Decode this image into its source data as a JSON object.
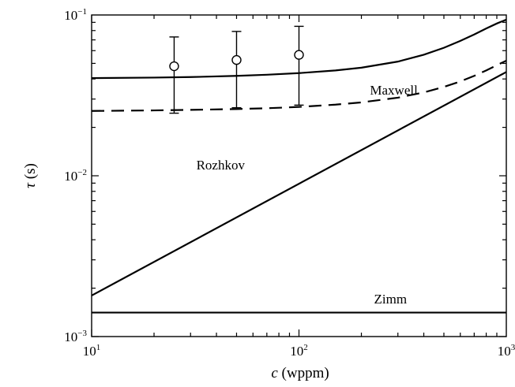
{
  "chart_data": {
    "type": "line",
    "title": "",
    "xlabel": {
      "var": "c",
      "unit": " (wppm)"
    },
    "ylabel": {
      "var": "τ",
      "unit": " (s)"
    },
    "x_scale": "log",
    "y_scale": "log",
    "xlim": [
      10,
      1000
    ],
    "ylim": [
      0.001,
      0.1
    ],
    "grid": false,
    "x_ticks": [
      {
        "value": 10,
        "base": "10",
        "exp": "1"
      },
      {
        "value": 100,
        "base": "10",
        "exp": "2"
      },
      {
        "value": 1000,
        "base": "10",
        "exp": "3"
      }
    ],
    "y_ticks": [
      {
        "value": 0.001,
        "base": "10",
        "exp": "−3"
      },
      {
        "value": 0.01,
        "base": "10",
        "exp": "−2"
      },
      {
        "value": 0.1,
        "base": "10",
        "exp": "−1"
      }
    ],
    "series": [
      {
        "style": "solid",
        "x": [
          10,
          20,
          30,
          50,
          70,
          100,
          150,
          200,
          300,
          400,
          500,
          600,
          700,
          800,
          900,
          1000
        ],
        "y": [
          0.0405,
          0.0408,
          0.0411,
          0.0418,
          0.0425,
          0.0435,
          0.0452,
          0.047,
          0.0513,
          0.0566,
          0.0625,
          0.069,
          0.0756,
          0.0824,
          0.0885,
          0.0935
        ]
      },
      {
        "style": "dashed",
        "x": [
          10,
          20,
          30,
          50,
          70,
          100,
          150,
          200,
          300,
          400,
          500,
          600,
          700,
          800,
          900,
          1000
        ],
        "y": [
          0.0253,
          0.0255,
          0.0257,
          0.026,
          0.0263,
          0.0268,
          0.0277,
          0.0286,
          0.0306,
          0.033,
          0.0357,
          0.0386,
          0.0418,
          0.0452,
          0.0487,
          0.052
        ]
      },
      {
        "style": "solid",
        "x": [
          10,
          1000
        ],
        "y": [
          0.0018,
          0.0442
        ]
      },
      {
        "style": "solid",
        "x": [
          10,
          1000
        ],
        "y": [
          0.00141,
          0.00141
        ]
      }
    ],
    "points": [
      {
        "x": 25,
        "y": 0.048,
        "ylow": 0.0245,
        "yhigh": 0.073
      },
      {
        "x": 50,
        "y": 0.0525,
        "ylow": 0.0265,
        "yhigh": 0.079
      },
      {
        "x": 100,
        "y": 0.0565,
        "ylow": 0.0275,
        "yhigh": 0.085
      }
    ],
    "annotations": [
      {
        "text": "Maxwell",
        "x": 220,
        "y": 0.0343
      },
      {
        "text": "Rozhkov",
        "x": 32,
        "y": 0.0117
      },
      {
        "text": "Zimm",
        "x": 230,
        "y": 0.00172
      }
    ]
  }
}
